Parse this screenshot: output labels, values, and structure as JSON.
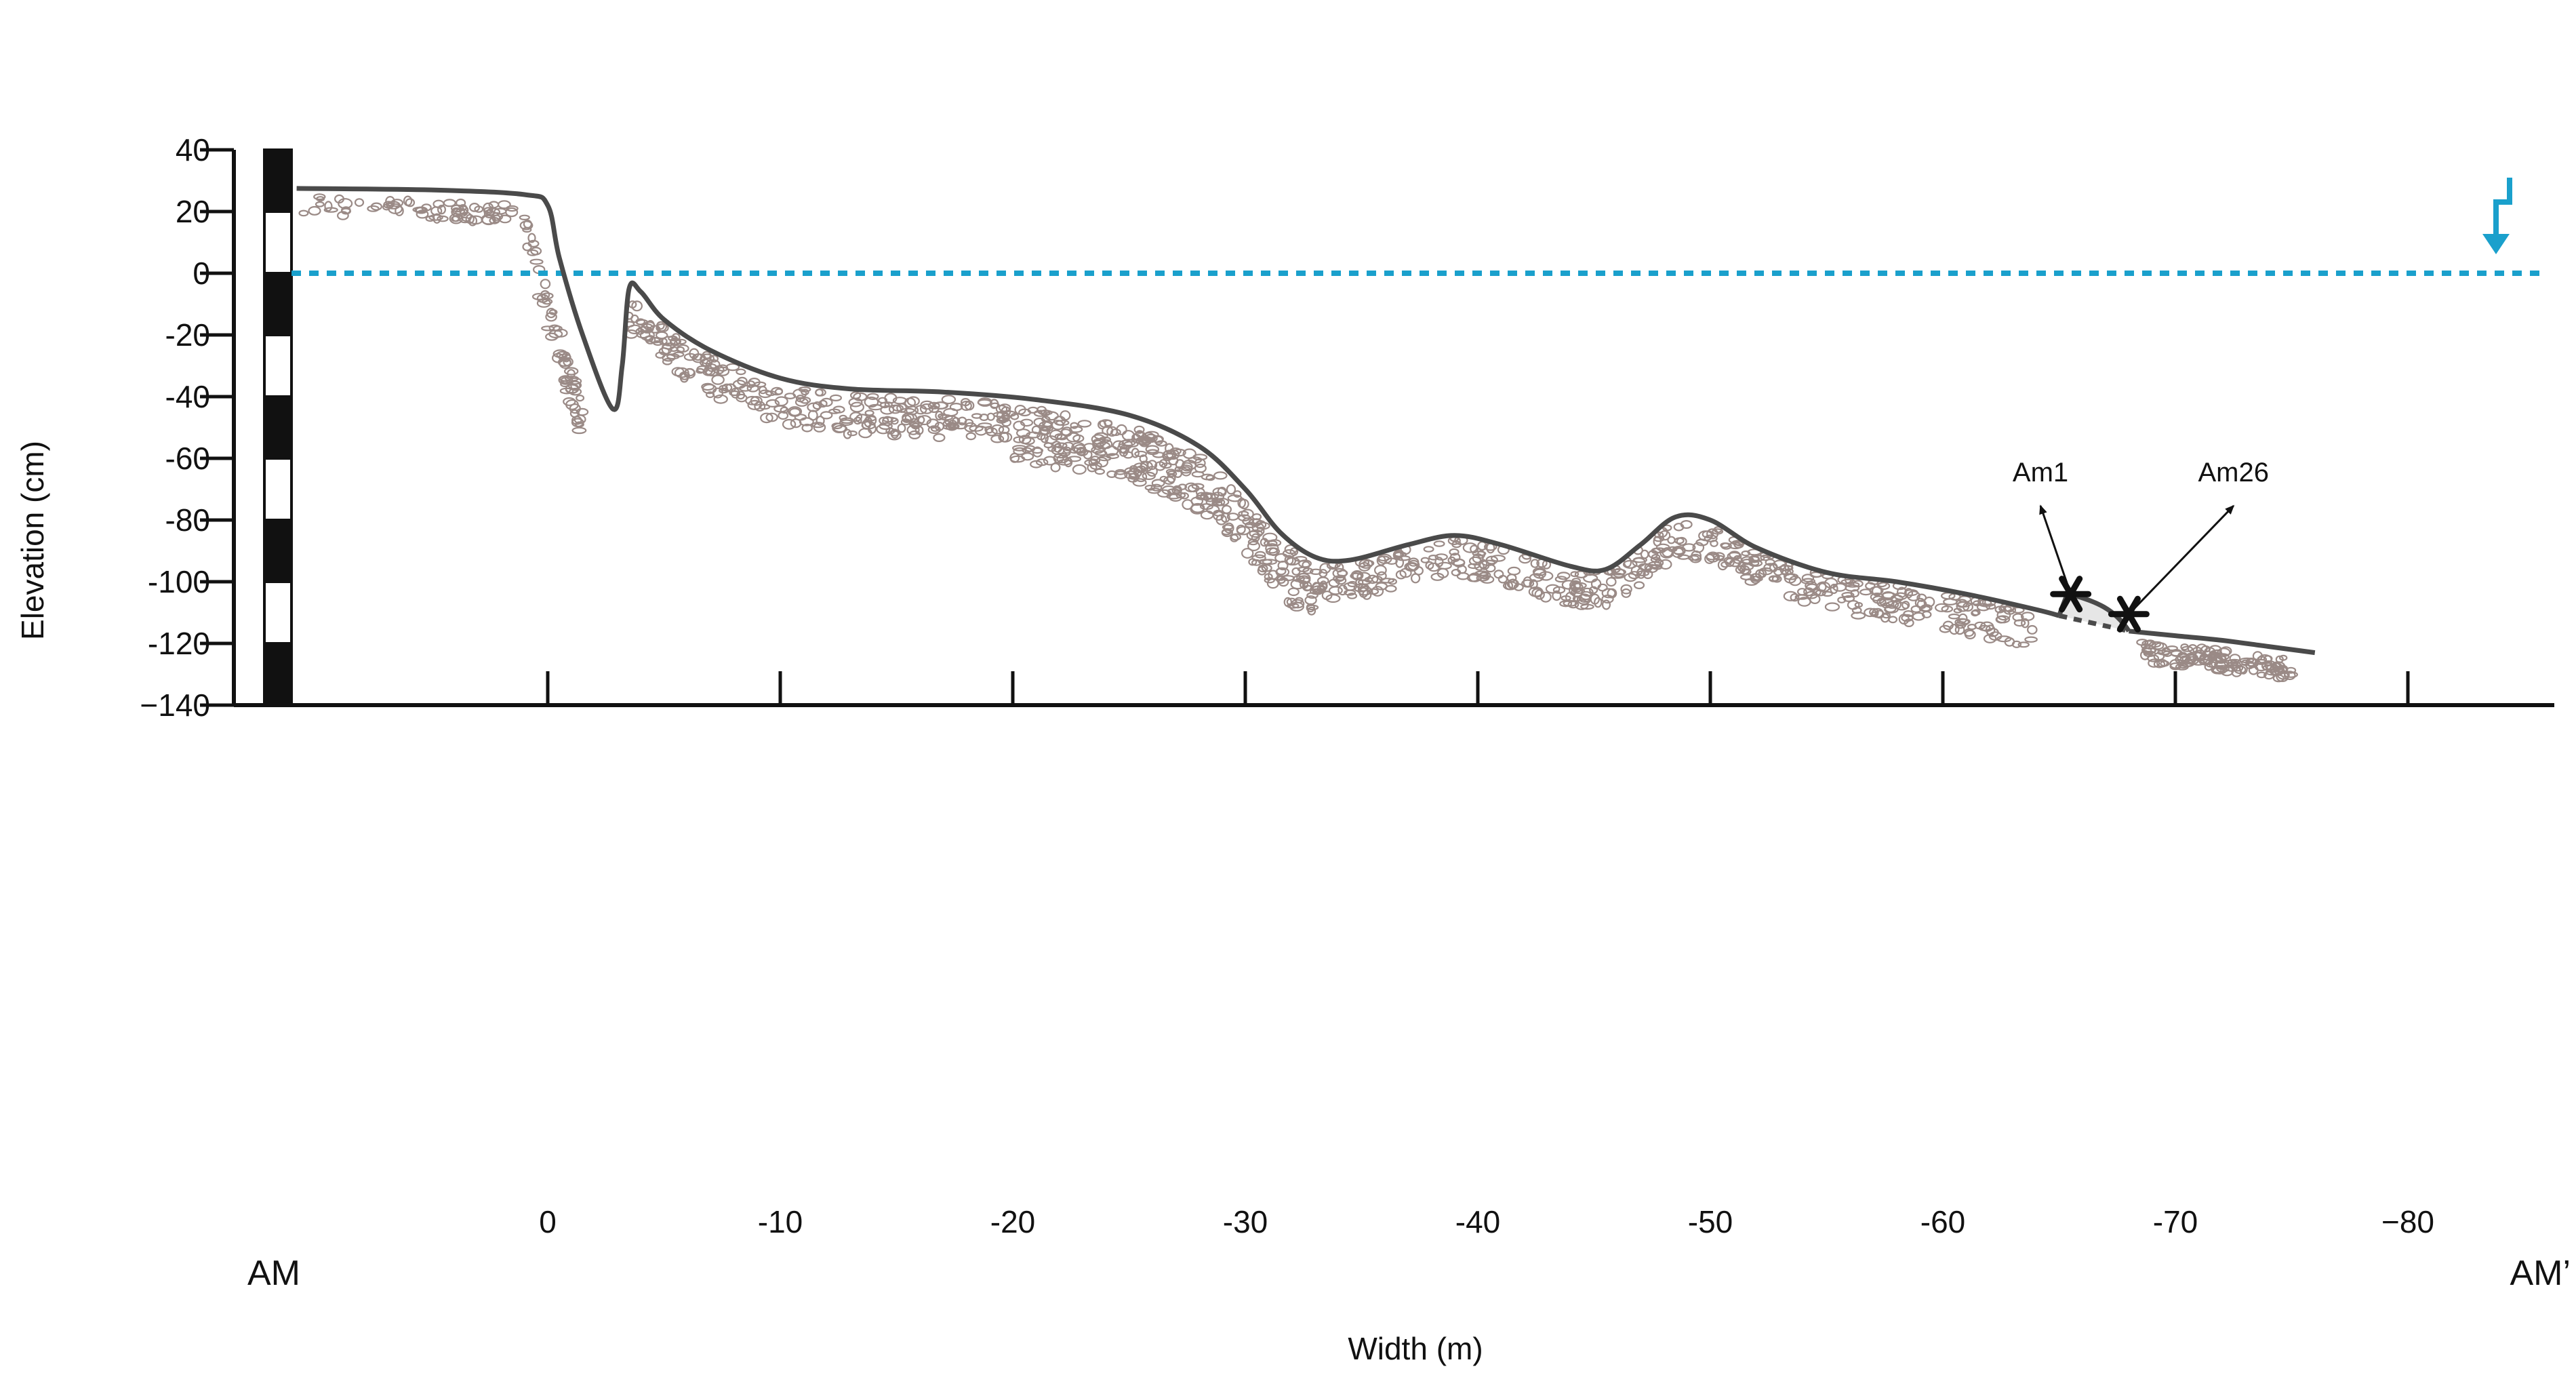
{
  "chart_data": {
    "type": "line",
    "xlabel": "Width (m)",
    "ylabel": "Elevation (cm)",
    "xlim": [
      12,
      -85
    ],
    "ylim": [
      -140,
      40
    ],
    "x_ticks": [
      0,
      -10,
      -20,
      -30,
      -40,
      -50,
      -60,
      -70,
      -80
    ],
    "x_tick_labels": [
      "0",
      "-10",
      "-20",
      "-30",
      "-40",
      "-50",
      "-60",
      "-70",
      "−80"
    ],
    "y_ticks": [
      40,
      20,
      0,
      -20,
      -40,
      -60,
      -80,
      -100,
      -120,
      -140
    ],
    "y_tick_labels": [
      "40",
      "20",
      "0",
      "-20",
      "-40",
      "-60",
      "-80",
      "-100",
      "-120",
      "−140"
    ],
    "section_start_label": "AM",
    "section_end_label": "AM’",
    "water_level": 0,
    "water_color": "#1aa0cc",
    "profile_color": "#4a4a4a",
    "pebble_color": "#9a8a86",
    "series": [
      {
        "values": [
          [
            10.8,
            27.5
          ],
          [
            5,
            27
          ],
          [
            1,
            25.5
          ],
          [
            0,
            22
          ],
          [
            -0.5,
            5
          ],
          [
            -1.5,
            -20
          ],
          [
            -2.8,
            -44
          ],
          [
            -3.2,
            -30
          ],
          [
            -3.5,
            -5
          ],
          [
            -4,
            -6
          ],
          [
            -5,
            -15
          ],
          [
            -7,
            -25
          ],
          [
            -10,
            -34
          ],
          [
            -13,
            -37.5
          ],
          [
            -17,
            -38.5
          ],
          [
            -21,
            -41
          ],
          [
            -25,
            -46
          ],
          [
            -28,
            -56
          ],
          [
            -30,
            -70
          ],
          [
            -31.5,
            -84
          ],
          [
            -33,
            -92
          ],
          [
            -34.5,
            -93
          ],
          [
            -37,
            -88
          ],
          [
            -39,
            -85
          ],
          [
            -41,
            -88
          ],
          [
            -44,
            -95
          ],
          [
            -45.5,
            -96
          ],
          [
            -47,
            -88
          ],
          [
            -48.5,
            -79
          ],
          [
            -50,
            -80
          ],
          [
            -52,
            -89
          ],
          [
            -55,
            -97
          ],
          [
            -58,
            -100
          ],
          [
            -61,
            -104
          ],
          [
            -64,
            -109
          ],
          [
            -65,
            -111
          ]
        ]
      },
      {
        "values": [
          [
            -68,
            -116
          ],
          [
            -70,
            -117.5
          ],
          [
            -72,
            -119
          ],
          [
            -74,
            -121
          ],
          [
            -76,
            -123
          ]
        ]
      }
    ],
    "annotations": [
      {
        "label": "Am1",
        "point": [
          -65.5,
          -104
        ],
        "label_at": [
          -64.2,
          -67.5
        ]
      },
      {
        "label": "Am26",
        "point": [
          -68,
          -110.5
        ],
        "label_at": [
          -72.5,
          -67.5
        ]
      }
    ]
  }
}
